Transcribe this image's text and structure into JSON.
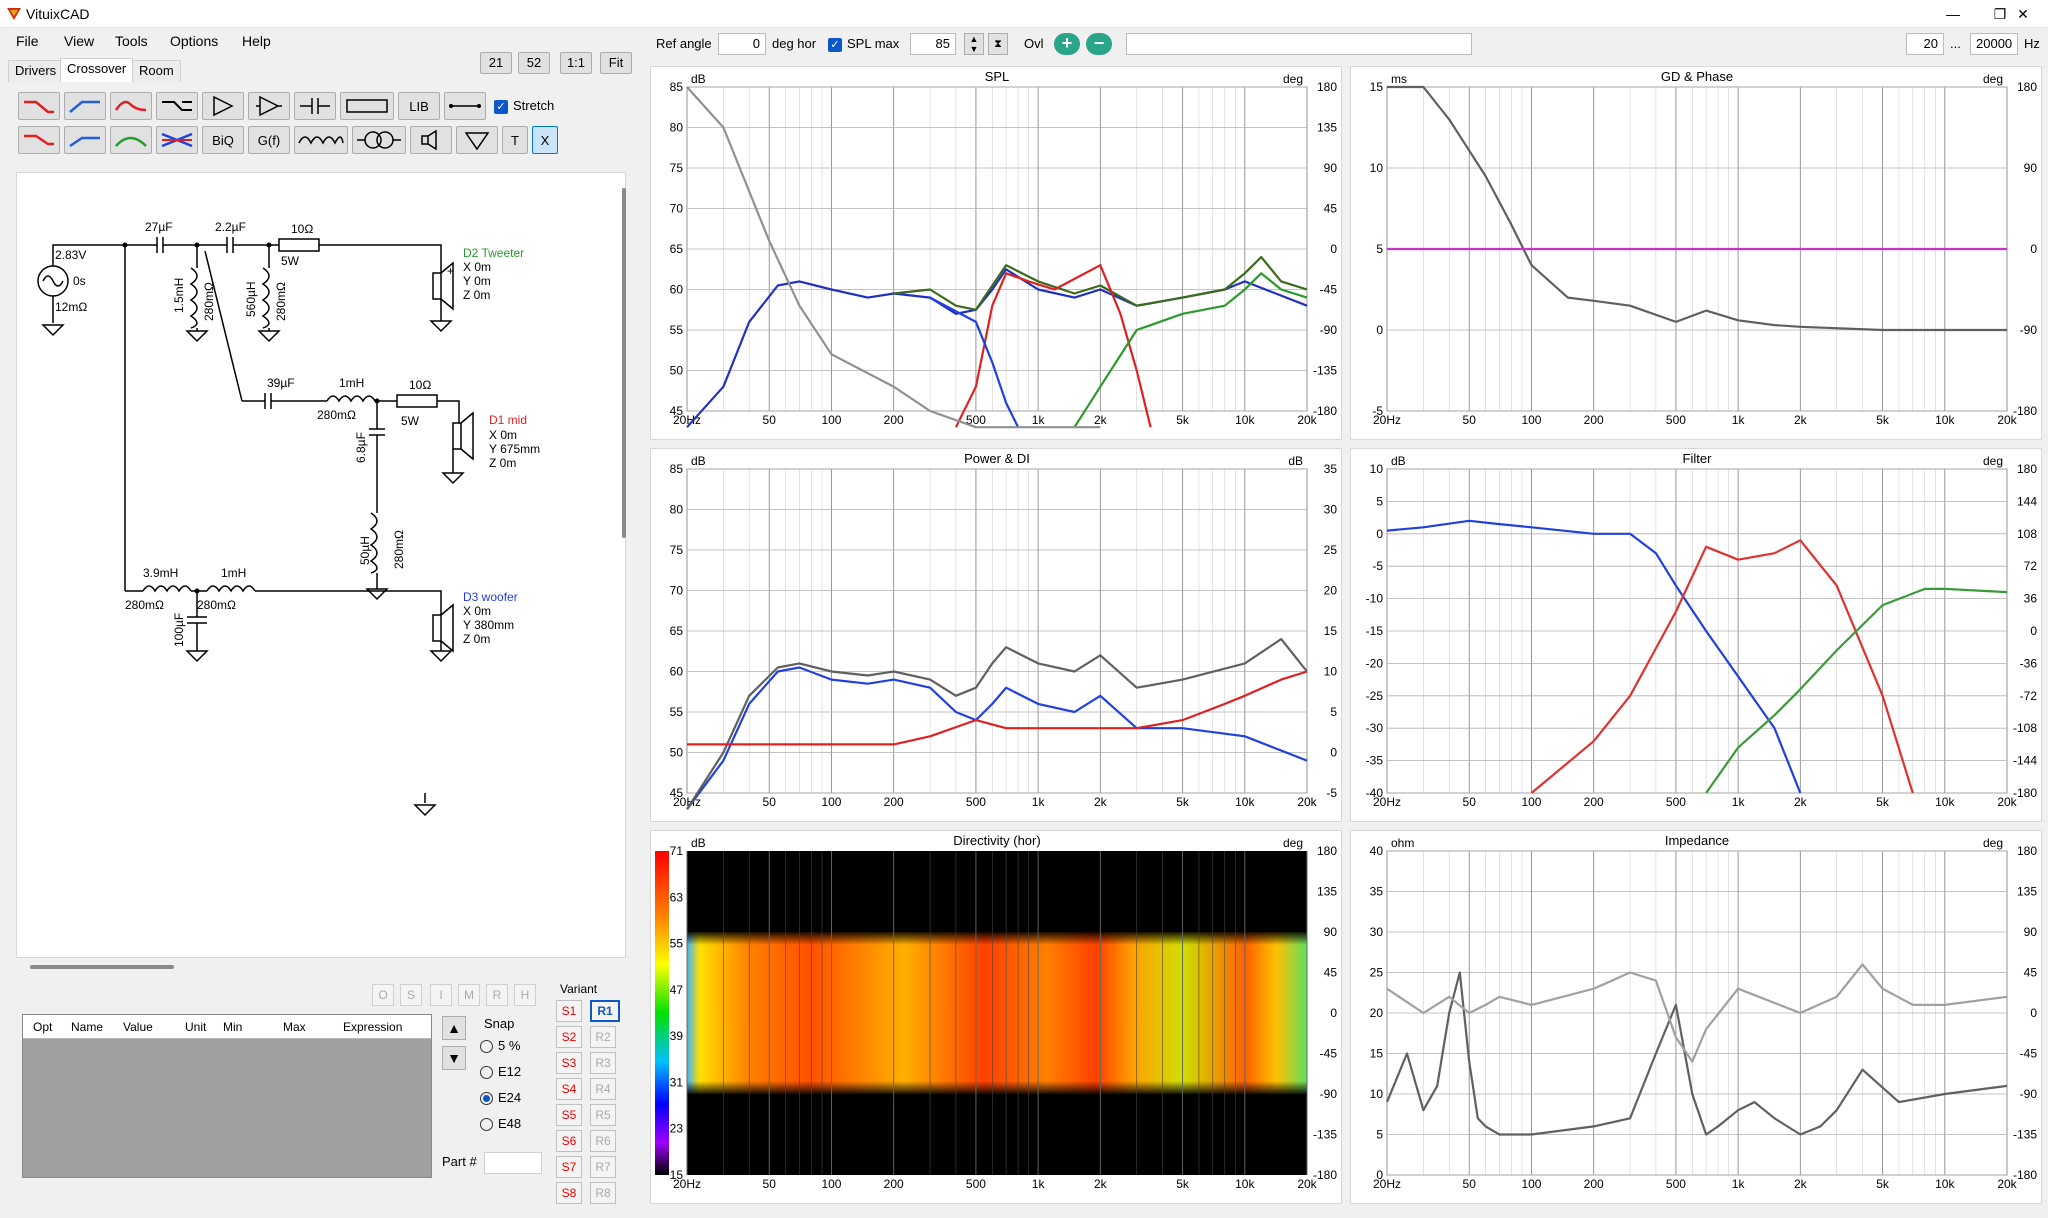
{
  "app": {
    "title": "VituixCAD"
  },
  "window": {
    "minimize": "—",
    "restore": "❐",
    "close": "✕"
  },
  "menu": {
    "items": [
      "File",
      "View",
      "Tools",
      "Options",
      "Help"
    ]
  },
  "left_tabs": [
    "Drivers",
    "Crossover",
    "Room"
  ],
  "zoom_buttons": [
    "21",
    "52",
    "1:1",
    "Fit"
  ],
  "toolbar": {
    "lib": "LIB",
    "stretch": "Stretch",
    "biq": "BiQ",
    "gf": "G(f)",
    "t": "T",
    "x": "X"
  },
  "schematic": {
    "source": {
      "voltage": "2.83V",
      "delay": "0s",
      "resistance": "12mΩ"
    },
    "labels": [
      "27µF",
      "2.2µF",
      "10Ω",
      "5W",
      "1.5mH",
      "280mΩ",
      "560µH",
      "280mΩ",
      "39µF",
      "1mH",
      "280mΩ",
      "10Ω",
      "5W",
      "6.8µF",
      "50µH",
      "280mΩ",
      "3.9mH",
      "280mΩ",
      "1mH",
      "280mΩ",
      "100µF"
    ],
    "drivers": [
      {
        "name": "D2 Tweeter",
        "x": "X 0m",
        "y": "Y 0m",
        "z": "Z 0m",
        "color": "#2a9a2a"
      },
      {
        "name": "D1 mid",
        "x": "X 0m",
        "y": "Y 675mm",
        "z": "Z 0m",
        "color": "#e02020"
      },
      {
        "name": "D3 woofer",
        "x": "X 0m",
        "y": "Y 380mm",
        "z": "Z 0m",
        "color": "#2040e0"
      }
    ]
  },
  "opt_buttons": [
    "O",
    "S",
    "I",
    "M",
    "R",
    "H"
  ],
  "opt_table": {
    "columns": [
      "Opt",
      "Name",
      "Value",
      "Unit",
      "Min",
      "Max",
      "Expression"
    ]
  },
  "snap": {
    "label": "Snap",
    "options": [
      "5 %",
      "E12",
      "E24",
      "E48"
    ],
    "selected": "E24"
  },
  "variant": {
    "label": "Variant",
    "s": [
      "S1",
      "S2",
      "S3",
      "S4",
      "S5",
      "S6",
      "S7",
      "S8"
    ],
    "r": [
      "R1",
      "R2",
      "R3",
      "R4",
      "R5",
      "R6",
      "R7",
      "R8"
    ],
    "selected": "R1"
  },
  "part": {
    "label": "Part #"
  },
  "top_controls": {
    "ref_angle_label": "Ref angle",
    "ref_angle": "0",
    "deg_hor": "deg hor",
    "spl_max_label": "SPL max",
    "spl_max": "85",
    "ovl": "Ovl",
    "f_min": "20",
    "dots": "...",
    "f_max": "20000",
    "hz": "Hz"
  },
  "x_ticks": [
    "20Hz",
    "50",
    "100",
    "200",
    "500",
    "1k",
    "2k",
    "5k",
    "10k",
    "20k"
  ],
  "charts": [
    {
      "title": "SPL",
      "ylabel_left": "dB",
      "ylabel_right": "deg",
      "left_ticks": [
        "85",
        "80",
        "75",
        "70",
        "65",
        "60",
        "55",
        "50",
        "45"
      ],
      "right_ticks": [
        "180",
        "135",
        "90",
        "45",
        "0",
        "-45",
        "-90",
        "-135",
        "-180"
      ]
    },
    {
      "title": "GD & Phase",
      "ylabel_left": "ms",
      "ylabel_right": "deg",
      "left_ticks": [
        "15",
        "10",
        "5",
        "0",
        "-5"
      ],
      "right_ticks": [
        "180",
        "90",
        "0",
        "-90",
        "-180"
      ]
    },
    {
      "title": "Power & DI",
      "ylabel_left": "dB",
      "ylabel_right": "dB",
      "left_ticks": [
        "85",
        "80",
        "75",
        "70",
        "65",
        "60",
        "55",
        "50",
        "45"
      ],
      "right_ticks": [
        "35",
        "30",
        "25",
        "20",
        "15",
        "10",
        "5",
        "0",
        "-5"
      ]
    },
    {
      "title": "Filter",
      "ylabel_left": "dB",
      "ylabel_right": "deg",
      "left_ticks": [
        "10",
        "5",
        "0",
        "-5",
        "-10",
        "-15",
        "-20",
        "-25",
        "-30",
        "-35",
        "-40"
      ],
      "right_ticks": [
        "180",
        "144",
        "108",
        "72",
        "36",
        "0",
        "-36",
        "-72",
        "-108",
        "-144",
        "-180"
      ]
    },
    {
      "title": "Directivity (hor)",
      "ylabel_left": "dB",
      "ylabel_right": "deg",
      "left_ticks": [
        "71",
        "63",
        "55",
        "47",
        "39",
        "31",
        "23",
        "15"
      ],
      "right_ticks": [
        "180",
        "135",
        "90",
        "45",
        "0",
        "-45",
        "-90",
        "-135",
        "-180"
      ]
    },
    {
      "title": "Impedance",
      "ylabel_left": "ohm",
      "ylabel_right": "deg",
      "left_ticks": [
        "40",
        "35",
        "30",
        "25",
        "20",
        "15",
        "10",
        "5",
        "0"
      ],
      "right_ticks": [
        "180",
        "135",
        "90",
        "45",
        "0",
        "-45",
        "-90",
        "-135",
        "-180"
      ]
    }
  ],
  "chart_data": [
    {
      "type": "line",
      "title": "SPL",
      "xscale": "log",
      "xlim": [
        20,
        20000
      ],
      "ylim": [
        45,
        85
      ],
      "y2lim": [
        -180,
        180
      ],
      "series": [
        {
          "color": "#2030c0",
          "x": [
            20,
            30,
            40,
            55,
            70,
            100,
            150,
            200,
            300,
            400,
            500,
            600,
            700,
            1000,
            1500,
            2000,
            3000,
            5000,
            8000,
            10000,
            20000
          ],
          "y": [
            40,
            48,
            56,
            60.5,
            61,
            60,
            59,
            59.5,
            59,
            57,
            57.5,
            60,
            62.5,
            60,
            59,
            60,
            58,
            59,
            60,
            61,
            58
          ]
        },
        {
          "color": "#3a6a1a",
          "x": [
            200,
            300,
            400,
            500,
            700,
            1000,
            1500,
            2000,
            3000,
            5000,
            8000,
            10000,
            12000,
            15000,
            20000
          ],
          "y": [
            59.5,
            60,
            58,
            57.5,
            63,
            61,
            59.5,
            60.5,
            58,
            59,
            60,
            62,
            64,
            61,
            60
          ]
        },
        {
          "color": "#e02020",
          "x": [
            400,
            500,
            600,
            700,
            900,
            1200,
            2000,
            2500,
            3000,
            3500
          ],
          "y": [
            41,
            48,
            58,
            62,
            61,
            60,
            63,
            57,
            50,
            41
          ]
        },
        {
          "color": "#2040e0",
          "x": [
            300,
            500,
            600,
            700,
            800
          ],
          "y": [
            59,
            56,
            51,
            46,
            40
          ]
        },
        {
          "color": "#2a9a2a",
          "x": [
            1500,
            2000,
            3000,
            5000,
            8000,
            10000,
            12000,
            15000,
            20000
          ],
          "y": [
            40,
            48,
            55,
            57,
            58,
            60,
            62,
            60,
            59
          ]
        },
        {
          "color": "#909090",
          "x": [
            20,
            30,
            50,
            70,
            100,
            200,
            300,
            500,
            700,
            1000,
            1500,
            2000
          ],
          "y": [
            85,
            80,
            66,
            58,
            52,
            48,
            45,
            42,
            38,
            35,
            30,
            25
          ]
        }
      ]
    },
    {
      "type": "line",
      "title": "GD & Phase",
      "xscale": "log",
      "xlim": [
        20,
        20000
      ],
      "ylim": [
        -5,
        15
      ],
      "y2lim": [
        -180,
        180
      ],
      "series": [
        {
          "color": "#606060",
          "x": [
            20,
            30,
            40,
            60,
            80,
            100,
            150,
            200,
            300,
            500,
            700,
            1000,
            1500,
            2000,
            5000,
            10000,
            20000
          ],
          "y": [
            15,
            15,
            13,
            9.5,
            6.5,
            4,
            2,
            1.8,
            1.5,
            0.5,
            1.2,
            0.6,
            0.3,
            0.2,
            0,
            0,
            0
          ]
        },
        {
          "color": "#cc30cc",
          "x": [
            20,
            20000
          ],
          "y": [
            5,
            5
          ]
        }
      ]
    },
    {
      "type": "line",
      "title": "Power & DI",
      "xscale": "log",
      "xlim": [
        20,
        20000
      ],
      "ylim": [
        45,
        85
      ],
      "y2lim": [
        -5,
        35
      ],
      "series": [
        {
          "color": "#2040e0",
          "x": [
            20,
            30,
            40,
            55,
            70,
            100,
            150,
            200,
            300,
            400,
            500,
            600,
            700,
            1000,
            1500,
            2000,
            3000,
            5000,
            10000,
            20000
          ],
          "y": [
            40,
            49,
            56,
            60,
            60.5,
            59,
            58.5,
            59,
            58,
            55,
            54,
            56,
            58,
            56,
            55,
            57,
            53,
            53,
            52,
            49
          ]
        },
        {
          "color": "#606060",
          "x": [
            20,
            30,
            40,
            55,
            70,
            100,
            150,
            200,
            300,
            400,
            500,
            600,
            700,
            1000,
            1500,
            2000,
            3000,
            5000,
            10000,
            15000,
            20000
          ],
          "y": [
            41,
            50,
            57,
            60.5,
            61,
            60,
            59.5,
            60,
            59,
            57,
            58,
            61,
            63,
            61,
            60,
            62,
            58,
            59,
            61,
            64,
            60
          ]
        },
        {
          "color": "#e02020",
          "x": [
            20,
            50,
            100,
            200,
            300,
            500,
            700,
            1000,
            2000,
            3000,
            5000,
            8000,
            10000,
            15000,
            20000
          ],
          "y": [
            51,
            51,
            51,
            51,
            52,
            54,
            53,
            53,
            53,
            53,
            54,
            56,
            57,
            59,
            60
          ]
        }
      ]
    },
    {
      "type": "line",
      "title": "Filter",
      "xscale": "log",
      "xlim": [
        20,
        20000
      ],
      "ylim": [
        -40,
        10
      ],
      "y2lim": [
        -180,
        180
      ],
      "series": [
        {
          "color": "#2040e0",
          "x": [
            20,
            30,
            50,
            70,
            100,
            200,
            300,
            400,
            500,
            700,
            1000,
            1500,
            2000
          ],
          "y": [
            0.5,
            1,
            2,
            1.5,
            1,
            0,
            0,
            -3,
            -8,
            -15,
            -22,
            -30,
            -40
          ]
        },
        {
          "color": "#e03030",
          "x": [
            100,
            200,
            300,
            500,
            700,
            1000,
            1500,
            2000,
            3000,
            5000,
            7000
          ],
          "y": [
            -40,
            -32,
            -25,
            -12,
            -2,
            -4,
            -3,
            -1,
            -8,
            -25,
            -40
          ]
        },
        {
          "color": "#3a9a3a",
          "x": [
            700,
            1000,
            1500,
            2000,
            3000,
            5000,
            8000,
            10000,
            20000
          ],
          "y": [
            -40,
            -33,
            -28,
            -24,
            -18,
            -11,
            -8.5,
            -8.5,
            -9
          ]
        }
      ]
    },
    {
      "type": "heatmap",
      "title": "Directivity (hor)",
      "xscale": "log",
      "xlim": [
        20,
        20000
      ],
      "ylim": [
        -180,
        180
      ],
      "zlim": [
        15,
        71
      ]
    },
    {
      "type": "line",
      "title": "Impedance",
      "xscale": "log",
      "xlim": [
        20,
        20000
      ],
      "ylim": [
        0,
        40
      ],
      "y2lim": [
        -180,
        180
      ],
      "series": [
        {
          "color": "#606060",
          "x": [
            20,
            25,
            30,
            35,
            40,
            45,
            50,
            55,
            60,
            70,
            100,
            200,
            300,
            400,
            500,
            600,
            700,
            800,
            1000,
            1200,
            1500,
            2000,
            2500,
            3000,
            4000,
            6000,
            10000,
            20000
          ],
          "y": [
            9,
            15,
            8,
            11,
            20,
            25,
            14,
            7,
            6,
            5,
            5,
            6,
            7,
            15,
            21,
            10,
            5,
            6,
            8,
            9,
            7,
            5,
            6,
            8,
            13,
            9,
            10,
            11
          ]
        },
        {
          "color": "#a0a0a0",
          "x": [
            20,
            30,
            40,
            50,
            60,
            70,
            100,
            200,
            300,
            400,
            500,
            600,
            700,
            1000,
            2000,
            3000,
            4000,
            5000,
            7000,
            10000,
            20000
          ],
          "y": [
            23,
            20,
            22,
            20,
            21,
            22,
            21,
            23,
            25,
            24,
            17,
            14,
            18,
            23,
            20,
            22,
            26,
            23,
            21,
            21,
            22
          ]
        }
      ]
    }
  ]
}
